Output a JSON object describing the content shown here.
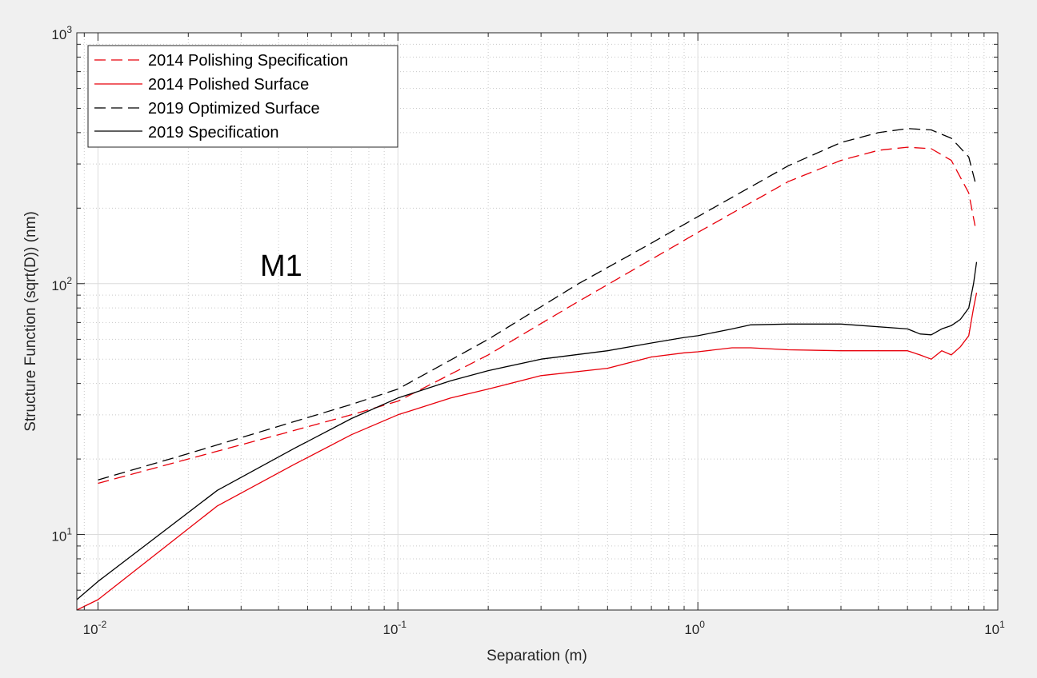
{
  "chart_data": {
    "type": "line",
    "xlabel": "Separation (m)",
    "ylabel": "Structure Function (sqrt(D)) (nm)",
    "xscale": "log",
    "yscale": "log",
    "xlim": [
      0.0085,
      10
    ],
    "ylim": [
      5,
      1000
    ],
    "grid": true,
    "minor_grid": true,
    "legend_position": "top-left",
    "annotation": "M1",
    "x_tick_labels": [
      {
        "base": "10",
        "exp": "-2",
        "value": 0.01
      },
      {
        "base": "10",
        "exp": "-1",
        "value": 0.1
      },
      {
        "base": "10",
        "exp": "0",
        "value": 1
      },
      {
        "base": "10",
        "exp": "1",
        "value": 10
      }
    ],
    "y_tick_labels": [
      {
        "base": "10",
        "exp": "1",
        "value": 10
      },
      {
        "base": "10",
        "exp": "2",
        "value": 100
      },
      {
        "base": "10",
        "exp": "3",
        "value": 1000
      }
    ],
    "series": [
      {
        "name": "2014 Polishing Specification",
        "color": "#e8000b",
        "style": "dashed",
        "x": [
          0.01,
          0.02,
          0.04,
          0.07,
          0.1,
          0.2,
          0.4,
          0.7,
          1.0,
          2.0,
          3.0,
          4.0,
          5.0,
          6.0,
          7.0,
          8.0,
          8.4
        ],
        "y": [
          16,
          20,
          25,
          30,
          34,
          52,
          85,
          125,
          160,
          255,
          310,
          340,
          350,
          345,
          310,
          230,
          170
        ]
      },
      {
        "name": "2014 Polished Surface",
        "color": "#e8000b",
        "style": "solid",
        "x": [
          0.0085,
          0.01,
          0.025,
          0.045,
          0.07,
          0.1,
          0.15,
          0.2,
          0.3,
          0.5,
          0.7,
          0.9,
          1.0,
          1.3,
          1.5,
          2.0,
          3.0,
          5.0,
          5.5,
          6.0,
          6.5,
          7.0,
          7.5,
          8.0,
          8.3,
          8.5
        ],
        "y": [
          5,
          5.5,
          13,
          19,
          25,
          30,
          35,
          38,
          43,
          46,
          51,
          53,
          53.5,
          55.5,
          55.5,
          54.5,
          54,
          54,
          52,
          50,
          54,
          52,
          56,
          62,
          80,
          92
        ]
      },
      {
        "name": "2019 Optimized Surface",
        "color": "#000000",
        "style": "dashed",
        "x": [
          0.01,
          0.02,
          0.04,
          0.07,
          0.1,
          0.2,
          0.4,
          0.7,
          1.0,
          2.0,
          3.0,
          4.0,
          5.0,
          6.0,
          7.0,
          8.0,
          8.4
        ],
        "y": [
          16.5,
          21,
          27,
          33,
          38,
          60,
          100,
          145,
          185,
          295,
          365,
          400,
          415,
          410,
          380,
          320,
          255
        ]
      },
      {
        "name": "2019 Specification",
        "color": "#000000",
        "style": "solid",
        "x": [
          0.0085,
          0.01,
          0.025,
          0.045,
          0.07,
          0.1,
          0.15,
          0.2,
          0.3,
          0.5,
          0.7,
          0.9,
          1.0,
          1.3,
          1.5,
          2.0,
          3.0,
          5.0,
          5.5,
          6.0,
          6.5,
          7.0,
          7.5,
          8.0,
          8.3,
          8.5
        ],
        "y": [
          5.5,
          6.5,
          15,
          22,
          29,
          35,
          41,
          45,
          50,
          54,
          58,
          61,
          62,
          66,
          68.5,
          69,
          69,
          66,
          63,
          62.5,
          66,
          68,
          72,
          80,
          100,
          122
        ]
      }
    ]
  }
}
